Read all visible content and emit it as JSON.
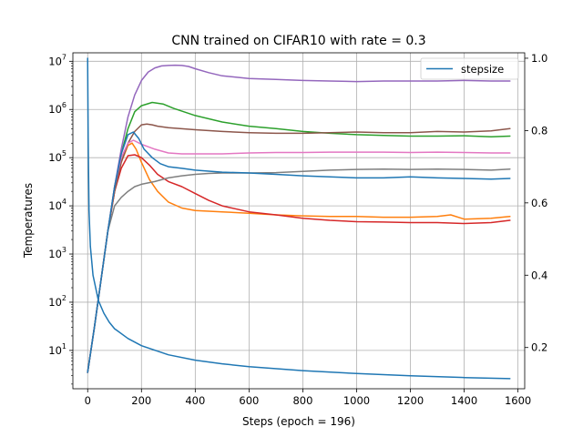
{
  "chart_data": {
    "type": "line",
    "title": "CNN trained on CIFAR10 with rate = 0.3",
    "xlabel": "Steps (epoch = 196)",
    "ylabel": "Temperatures",
    "xlim": [
      -55,
      1625
    ],
    "xticks": [
      0,
      200,
      400,
      600,
      800,
      1000,
      1200,
      1400,
      1600
    ],
    "xtick_labels": [
      "0",
      "200",
      "400",
      "600",
      "800",
      "1000",
      "1200",
      "1400",
      "1600"
    ],
    "y_left": {
      "scale": "log",
      "lim": [
        1.6,
        15000000
      ],
      "ticks": [
        10,
        100,
        1000,
        10000,
        100000,
        1000000,
        10000000
      ],
      "tick_labels": [
        {
          "base": "10",
          "exp": "1"
        },
        {
          "base": "10",
          "exp": "2"
        },
        {
          "base": "10",
          "exp": "3"
        },
        {
          "base": "10",
          "exp": "4"
        },
        {
          "base": "10",
          "exp": "5"
        },
        {
          "base": "10",
          "exp": "6"
        },
        {
          "base": "10",
          "exp": "7"
        }
      ]
    },
    "y_right": {
      "scale": "linear",
      "lim": [
        0.086,
        1.015
      ],
      "ticks": [
        0.2,
        0.4,
        0.6,
        0.8,
        1.0
      ],
      "tick_labels": [
        "0.2",
        "0.4",
        "0.6",
        "0.8",
        "1.0"
      ]
    },
    "grid": true,
    "legend_position": "top-right",
    "series": [
      {
        "name": "stepsize",
        "axis": "right",
        "color": "#1f77b4",
        "x": [
          0,
          2,
          5,
          10,
          20,
          40,
          60,
          80,
          100,
          150,
          200,
          300,
          400,
          500,
          600,
          800,
          1000,
          1200,
          1400,
          1570
        ],
        "values": [
          1.0,
          0.78,
          0.58,
          0.48,
          0.4,
          0.33,
          0.295,
          0.27,
          0.252,
          0.225,
          0.205,
          0.18,
          0.165,
          0.155,
          0.147,
          0.136,
          0.128,
          0.122,
          0.117,
          0.114
        ]
      },
      {
        "axis": "left",
        "color": "#ff7f0e",
        "x": [
          0,
          25,
          50,
          75,
          100,
          125,
          150,
          165,
          180,
          200,
          230,
          260,
          300,
          350,
          400,
          500,
          600,
          700,
          800,
          900,
          1000,
          1100,
          1200,
          1300,
          1350,
          1400,
          1500,
          1570
        ],
        "values": [
          3.5,
          30,
          300,
          3000,
          20000,
          80000,
          180000,
          200000,
          150000,
          80000,
          35000,
          20000,
          12000,
          9000,
          8000,
          7500,
          7000,
          6500,
          6200,
          6000,
          6000,
          5800,
          5800,
          6000,
          6500,
          5300,
          5500,
          6000
        ]
      },
      {
        "axis": "left",
        "color": "#2ca02c",
        "x": [
          0,
          25,
          50,
          75,
          100,
          125,
          150,
          175,
          200,
          240,
          280,
          320,
          400,
          500,
          600,
          700,
          800,
          900,
          1000,
          1100,
          1200,
          1300,
          1400,
          1500,
          1570
        ],
        "values": [
          3.5,
          30,
          300,
          3000,
          25000,
          120000,
          400000,
          900000,
          1200000,
          1400000,
          1300000,
          1050000,
          750000,
          550000,
          450000,
          400000,
          350000,
          320000,
          300000,
          290000,
          280000,
          280000,
          285000,
          270000,
          280000
        ]
      },
      {
        "axis": "left",
        "color": "#d62728",
        "x": [
          0,
          25,
          50,
          75,
          100,
          125,
          150,
          175,
          200,
          230,
          260,
          300,
          350,
          400,
          450,
          500,
          600,
          700,
          800,
          900,
          1000,
          1100,
          1200,
          1300,
          1400,
          1500,
          1570
        ],
        "values": [
          3.5,
          30,
          300,
          3000,
          20000,
          60000,
          110000,
          115000,
          100000,
          70000,
          45000,
          32000,
          25000,
          18000,
          13000,
          10000,
          7500,
          6500,
          5500,
          5000,
          4700,
          4600,
          4500,
          4500,
          4300,
          4500,
          5000
        ]
      },
      {
        "axis": "left",
        "color": "#9467bd",
        "x": [
          0,
          25,
          50,
          75,
          100,
          125,
          150,
          175,
          200,
          225,
          250,
          275,
          300,
          325,
          350,
          375,
          400,
          450,
          500,
          600,
          700,
          800,
          900,
          1000,
          1100,
          1200,
          1300,
          1400,
          1500,
          1570
        ],
        "values": [
          3.5,
          30,
          300,
          3000,
          25000,
          150000,
          700000,
          2000000,
          4000000,
          6000000,
          7300000,
          8000000,
          8200000,
          8300000,
          8200000,
          7800000,
          7000000,
          5800000,
          5000000,
          4400000,
          4200000,
          4000000,
          3900000,
          3800000,
          3900000,
          3900000,
          3900000,
          4000000,
          3900000,
          3900000
        ]
      },
      {
        "axis": "left",
        "color": "#8c564b",
        "x": [
          0,
          25,
          50,
          75,
          100,
          125,
          150,
          175,
          200,
          220,
          240,
          260,
          300,
          400,
          500,
          600,
          700,
          800,
          900,
          1000,
          1100,
          1200,
          1300,
          1400,
          1500,
          1570
        ],
        "values": [
          3.5,
          30,
          300,
          3000,
          20000,
          80000,
          200000,
          350000,
          480000,
          500000,
          480000,
          450000,
          420000,
          380000,
          350000,
          330000,
          320000,
          320000,
          330000,
          340000,
          330000,
          330000,
          350000,
          340000,
          360000,
          400000
        ]
      },
      {
        "axis": "left",
        "color": "#e377c2",
        "x": [
          0,
          25,
          50,
          75,
          100,
          125,
          150,
          170,
          200,
          250,
          300,
          350,
          400,
          500,
          600,
          700,
          800,
          900,
          1000,
          1100,
          1200,
          1300,
          1400,
          1500,
          1570
        ],
        "values": [
          3.5,
          30,
          300,
          3000,
          25000,
          100000,
          200000,
          230000,
          190000,
          150000,
          125000,
          120000,
          120000,
          120000,
          125000,
          128000,
          128000,
          130000,
          130000,
          130000,
          128000,
          130000,
          128000,
          125000,
          125000
        ]
      },
      {
        "axis": "left",
        "color": "#7f7f7f",
        "x": [
          0,
          25,
          50,
          75,
          100,
          125,
          150,
          175,
          200,
          250,
          300,
          350,
          400,
          450,
          500,
          600,
          700,
          800,
          900,
          1000,
          1100,
          1200,
          1300,
          1400,
          1500,
          1570
        ],
        "values": [
          3.5,
          30,
          300,
          3000,
          10000,
          15000,
          20000,
          25000,
          28000,
          32000,
          38000,
          42000,
          45000,
          47000,
          48000,
          48000,
          49000,
          52000,
          55000,
          57000,
          58000,
          57000,
          58000,
          57000,
          55000,
          58000
        ]
      },
      {
        "axis": "left",
        "color": "#1f77b4",
        "x": [
          0,
          25,
          50,
          75,
          100,
          125,
          150,
          170,
          190,
          210,
          240,
          270,
          300,
          350,
          400,
          500,
          600,
          700,
          800,
          900,
          1000,
          1100,
          1200,
          1300,
          1400,
          1500,
          1570
        ],
        "values": [
          3.5,
          30,
          300,
          3000,
          25000,
          120000,
          300000,
          340000,
          250000,
          150000,
          100000,
          75000,
          65000,
          60000,
          55000,
          50000,
          48000,
          45000,
          42000,
          40000,
          38000,
          38000,
          40000,
          38000,
          37000,
          36000,
          37000
        ]
      }
    ]
  }
}
